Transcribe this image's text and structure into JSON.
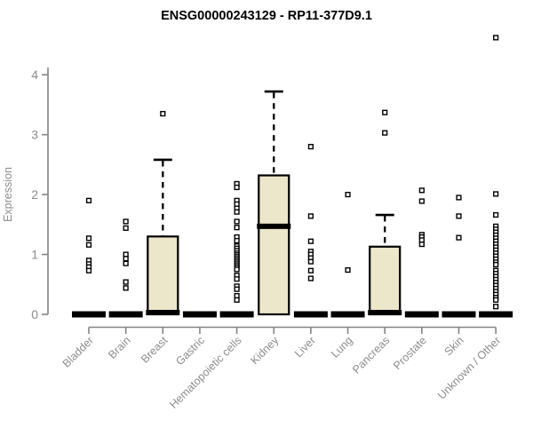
{
  "chart_data": {
    "type": "boxplot",
    "title": "ENSG00000243129 - RP11-377D9.1",
    "ylabel": "Expression",
    "yticks": [
      0,
      1,
      2,
      3,
      4
    ],
    "ylim": [
      0,
      4.75
    ],
    "grid": false,
    "legend": "none",
    "colors": {
      "box_fill": "#ECE6CB",
      "box_stroke": "#000000",
      "axis": "#848484",
      "tick_label": "#8C8C8C",
      "title_color": "#000000"
    },
    "categories": [
      "Bladder",
      "Brain",
      "Breast",
      "Gastric",
      "Hematopoietic cells",
      "Kidney",
      "Liver",
      "Lung",
      "Pancreas",
      "Prostate",
      "Skin",
      "Unknown / Other"
    ],
    "series": [
      {
        "name": "Bladder",
        "collapsed": true,
        "q1": 0,
        "median": 0,
        "q3": 0,
        "whisker_high": 0,
        "outliers": [
          1.9,
          1.27,
          1.16,
          0.9,
          0.84,
          0.79,
          0.73
        ]
      },
      {
        "name": "Brain",
        "collapsed": true,
        "q1": 0,
        "median": 0,
        "q3": 0,
        "whisker_high": 0,
        "outliers": [
          1.55,
          1.44,
          1.0,
          0.93,
          0.85,
          0.54,
          0.44
        ]
      },
      {
        "name": "Breast",
        "collapsed": false,
        "q1": 0,
        "median": 0.03,
        "q3": 1.3,
        "whisker_high": 2.58,
        "outliers": [
          3.35
        ]
      },
      {
        "name": "Gastric",
        "collapsed": true,
        "q1": 0,
        "median": 0,
        "q3": 0,
        "whisker_high": 0,
        "outliers": []
      },
      {
        "name": "Hematopoietic cells",
        "collapsed": true,
        "q1": 0,
        "median": 0,
        "q3": 0,
        "whisker_high": 0,
        "outliers": [
          2.18,
          2.12,
          1.9,
          1.84,
          1.77,
          1.71,
          1.55,
          1.45,
          1.29,
          1.23,
          1.14,
          1.1,
          1.06,
          1.02,
          0.99,
          0.96,
          0.93,
          0.9,
          0.87,
          0.84,
          0.81,
          0.78,
          0.75,
          0.65,
          0.59,
          0.47,
          0.42,
          0.31,
          0.24
        ]
      },
      {
        "name": "Kidney",
        "collapsed": false,
        "q1": 0,
        "median": 1.47,
        "q3": 2.32,
        "whisker_high": 3.72,
        "outliers": []
      },
      {
        "name": "Liver",
        "collapsed": true,
        "q1": 0,
        "median": 0,
        "q3": 0,
        "whisker_high": 0,
        "outliers": [
          2.8,
          1.64,
          1.22,
          1.05,
          1.0,
          0.94,
          0.88,
          0.73,
          0.6
        ]
      },
      {
        "name": "Lung",
        "collapsed": true,
        "q1": 0,
        "median": 0,
        "q3": 0,
        "whisker_high": 0,
        "outliers": [
          2.0,
          0.74
        ]
      },
      {
        "name": "Pancreas",
        "collapsed": false,
        "q1": 0,
        "median": 0.03,
        "q3": 1.13,
        "whisker_high": 1.66,
        "outliers": [
          3.37,
          3.03
        ]
      },
      {
        "name": "Prostate",
        "collapsed": true,
        "q1": 0,
        "median": 0,
        "q3": 0,
        "whisker_high": 0,
        "outliers": [
          2.07,
          1.89,
          1.33,
          1.29,
          1.24,
          1.17
        ]
      },
      {
        "name": "Skin",
        "collapsed": true,
        "q1": 0,
        "median": 0,
        "q3": 0,
        "whisker_high": 0,
        "outliers": [
          1.95,
          1.64,
          1.28
        ]
      },
      {
        "name": "Unknown / Other",
        "collapsed": true,
        "q1": 0,
        "median": 0,
        "q3": 0,
        "whisker_high": 0,
        "outliers": [
          4.62,
          2.01,
          1.66,
          1.47,
          1.42,
          1.37,
          1.32,
          1.27,
          1.22,
          1.17,
          1.12,
          1.07,
          1.02,
          0.97,
          0.92,
          0.87,
          0.83,
          0.73,
          0.68,
          0.63,
          0.58,
          0.53,
          0.48,
          0.43,
          0.38,
          0.33,
          0.28,
          0.24,
          0.13
        ]
      }
    ]
  }
}
